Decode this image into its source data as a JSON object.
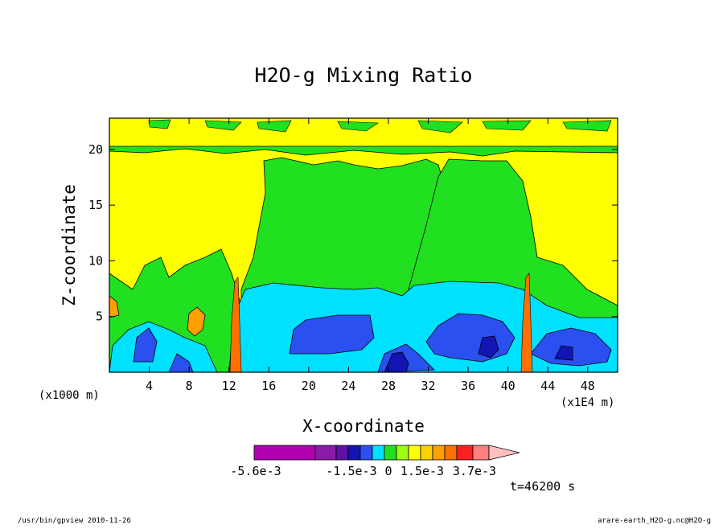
{
  "chart_data": {
    "type": "heatmap",
    "title": "H2O-g Mixing Ratio",
    "xlabel": "X-coordinate",
    "ylabel": "Z-coordinate",
    "x_unit_left": "(x1000 m)",
    "x_unit_right": "(x1E4 m)",
    "xlim": [
      0,
      51
    ],
    "ylim": [
      0,
      22.8
    ],
    "x_ticks": [
      4,
      8,
      12,
      16,
      20,
      24,
      28,
      32,
      36,
      40,
      44,
      48
    ],
    "x_tick_labels": [
      "4",
      "8",
      "12",
      "16",
      "20",
      "24",
      "28",
      "32",
      "36",
      "40",
      "44",
      "48"
    ],
    "y_ticks": [
      5,
      10,
      15,
      20
    ],
    "y_tick_labels": [
      "5",
      "10",
      "15",
      "20"
    ],
    "colorbar": {
      "colors": [
        "#b000b0",
        "#8a1aa8",
        "#6010a8",
        "#1414b4",
        "#2a50f0",
        "#00e0ff",
        "#20e020",
        "#a0ff10",
        "#ffff00",
        "#ffd000",
        "#ffa000",
        "#ff7000",
        "#ff2020",
        "#ff8080",
        "#ffc0c0"
      ],
      "tick_labels": [
        "-5.6e-3",
        "-1.5e-3",
        "0",
        "1.5e-3",
        "3.7e-3"
      ]
    },
    "time_label": "t=46200 s"
  },
  "footer": {
    "left": "/usr/bin/gpview  2010-11-26",
    "right": "arare-earth_H2O-g.nc@H2O-g"
  }
}
